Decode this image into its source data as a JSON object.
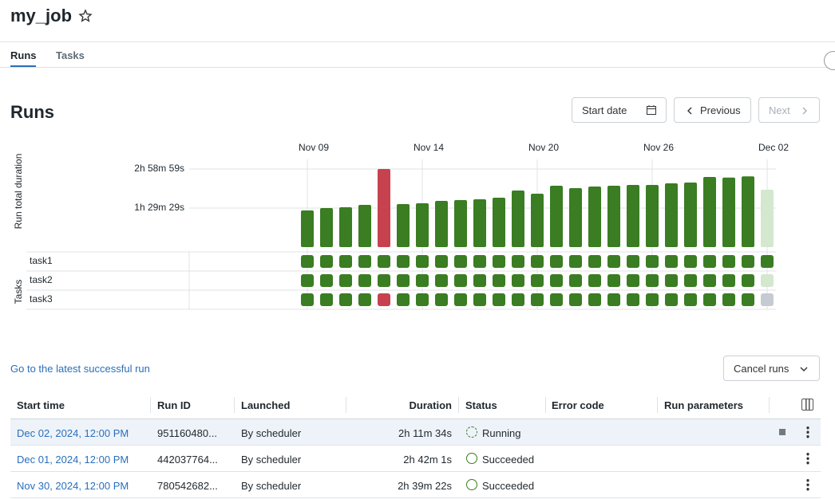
{
  "header": {
    "title": "my_job"
  },
  "tabs": [
    "Runs",
    "Tasks"
  ],
  "section_title": "Runs",
  "buttons": {
    "start_date": "Start date",
    "previous": "Previous",
    "next": "Next",
    "cancel_runs": "Cancel runs"
  },
  "link": "Go to the latest successful run",
  "chart_data": {
    "type": "bar",
    "ylabel": "Run total duration",
    "categories": [
      "Nov 09",
      null,
      null,
      null,
      null,
      null,
      "Nov 14",
      null,
      null,
      null,
      null,
      null,
      "Nov 20",
      null,
      null,
      null,
      null,
      null,
      "Nov 26",
      null,
      null,
      null,
      null,
      null,
      "Dec 02"
    ],
    "values": [
      5040,
      5369,
      5480,
      5810,
      10739,
      5920,
      6030,
      6360,
      6470,
      6580,
      6800,
      7780,
      7340,
      8440,
      8110,
      8330,
      8440,
      8550,
      8550,
      8770,
      8880,
      9650,
      9562,
      9721,
      7894
    ],
    "colors": [
      "#3a7d22",
      "#3a7d22",
      "#3a7d22",
      "#3a7d22",
      "#c7424f",
      "#3a7d22",
      "#3a7d22",
      "#3a7d22",
      "#3a7d22",
      "#3a7d22",
      "#3a7d22",
      "#3a7d22",
      "#3a7d22",
      "#3a7d22",
      "#3a7d22",
      "#3a7d22",
      "#3a7d22",
      "#3a7d22",
      "#3a7d22",
      "#3a7d22",
      "#3a7d22",
      "#3a7d22",
      "#3a7d22",
      "#3a7d22",
      "#d3e8cf"
    ],
    "ylim": [
      0,
      10739
    ],
    "yticks": [
      {
        "value": 5369,
        "label": "1h 29m 29s"
      },
      {
        "value": 10739,
        "label": "2h 58m 59s"
      }
    ],
    "grid": true,
    "tasks_label": "Tasks",
    "tasks": [
      {
        "name": "task1",
        "colors": [
          "#3a7d22",
          "#3a7d22",
          "#3a7d22",
          "#3a7d22",
          "#3a7d22",
          "#3a7d22",
          "#3a7d22",
          "#3a7d22",
          "#3a7d22",
          "#3a7d22",
          "#3a7d22",
          "#3a7d22",
          "#3a7d22",
          "#3a7d22",
          "#3a7d22",
          "#3a7d22",
          "#3a7d22",
          "#3a7d22",
          "#3a7d22",
          "#3a7d22",
          "#3a7d22",
          "#3a7d22",
          "#3a7d22",
          "#3a7d22",
          "#3a7d22"
        ]
      },
      {
        "name": "task2",
        "colors": [
          "#3a7d22",
          "#3a7d22",
          "#3a7d22",
          "#3a7d22",
          "#3a7d22",
          "#3a7d22",
          "#3a7d22",
          "#3a7d22",
          "#3a7d22",
          "#3a7d22",
          "#3a7d22",
          "#3a7d22",
          "#3a7d22",
          "#3a7d22",
          "#3a7d22",
          "#3a7d22",
          "#3a7d22",
          "#3a7d22",
          "#3a7d22",
          "#3a7d22",
          "#3a7d22",
          "#3a7d22",
          "#3a7d22",
          "#3a7d22",
          "#d3e8cf"
        ]
      },
      {
        "name": "task3",
        "colors": [
          "#3a7d22",
          "#3a7d22",
          "#3a7d22",
          "#3a7d22",
          "#c7424f",
          "#3a7d22",
          "#3a7d22",
          "#3a7d22",
          "#3a7d22",
          "#3a7d22",
          "#3a7d22",
          "#3a7d22",
          "#3a7d22",
          "#3a7d22",
          "#3a7d22",
          "#3a7d22",
          "#3a7d22",
          "#3a7d22",
          "#3a7d22",
          "#3a7d22",
          "#3a7d22",
          "#3a7d22",
          "#3a7d22",
          "#3a7d22",
          "#c5cad3"
        ]
      }
    ]
  },
  "table": {
    "columns": [
      "Start time",
      "Run ID",
      "Launched",
      "Duration",
      "Status",
      "Error code",
      "Run parameters"
    ],
    "rows": [
      [
        "Dec 02, 2024, 12:00 PM",
        "951160480...",
        "By scheduler",
        "2h 11m 34s",
        "Running"
      ],
      [
        "Dec 01, 2024, 12:00 PM",
        "442037764...",
        "By scheduler",
        "2h 42m 1s",
        "Succeeded"
      ],
      [
        "Nov 30, 2024, 12:00 PM",
        "780542682...",
        "By scheduler",
        "2h 39m 22s",
        "Succeeded"
      ]
    ]
  }
}
